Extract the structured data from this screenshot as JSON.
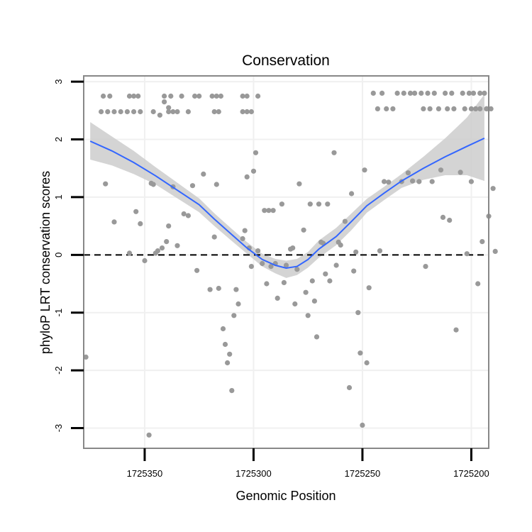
{
  "chart_data": {
    "type": "scatter",
    "title": "Conservation",
    "xlabel": "Genomic Position",
    "ylabel": "phyloP LRT conservation scores",
    "x_reversed": true,
    "xlim": [
      1725378,
      1725192
    ],
    "ylim": [
      -3.35,
      3.1
    ],
    "x_ticks": [
      1725350,
      1725300,
      1725250,
      1725200
    ],
    "x_tick_labels": [
      "1725350",
      "1725300",
      "1725250",
      "1725200"
    ],
    "y_ticks": [
      -3,
      -2,
      -1,
      0,
      1,
      2,
      3
    ],
    "y_tick_labels": [
      "-3",
      "-2",
      "-1",
      "0",
      "1",
      "2",
      "3"
    ],
    "grid": true,
    "reference_line": {
      "y": 0,
      "style": "dashed",
      "color": "#000000"
    },
    "colors": {
      "points": "#999999",
      "smooth": "#3366ff",
      "band": "#cccccc",
      "frame": "#888888",
      "grid": "#f0f0f0"
    },
    "series": [
      {
        "type": "points",
        "points": [
          [
            1725369,
            2.75
          ],
          [
            1725366,
            2.75
          ],
          [
            1725357,
            2.75
          ],
          [
            1725355,
            2.75
          ],
          [
            1725353,
            2.75
          ],
          [
            1725341,
            2.75
          ],
          [
            1725338,
            2.75
          ],
          [
            1725333,
            2.75
          ],
          [
            1725327,
            2.75
          ],
          [
            1725325,
            2.75
          ],
          [
            1725319,
            2.75
          ],
          [
            1725317,
            2.75
          ],
          [
            1725315,
            2.75
          ],
          [
            1725305,
            2.75
          ],
          [
            1725303,
            2.75
          ],
          [
            1725298,
            2.75
          ],
          [
            1725370,
            2.48
          ],
          [
            1725367,
            2.48
          ],
          [
            1725364,
            2.48
          ],
          [
            1725361,
            2.48
          ],
          [
            1725358,
            2.48
          ],
          [
            1725355,
            2.48
          ],
          [
            1725352,
            2.48
          ],
          [
            1725346,
            2.48
          ],
          [
            1725339,
            2.48
          ],
          [
            1725337,
            2.48
          ],
          [
            1725335,
            2.48
          ],
          [
            1725330,
            2.48
          ],
          [
            1725318,
            2.48
          ],
          [
            1725316,
            2.48
          ],
          [
            1725305,
            2.48
          ],
          [
            1725303,
            2.48
          ],
          [
            1725301,
            2.48
          ],
          [
            1725343,
            2.42
          ],
          [
            1725341,
            2.65
          ],
          [
            1725339,
            2.55
          ],
          [
            1725368,
            1.23
          ],
          [
            1725364,
            0.57
          ],
          [
            1725357,
            0.03
          ],
          [
            1725354,
            0.75
          ],
          [
            1725352,
            0.54
          ],
          [
            1725350,
            -0.1
          ],
          [
            1725346,
            1.22
          ],
          [
            1725344,
            0.07
          ],
          [
            1725342,
            0.12
          ],
          [
            1725340,
            0.23
          ],
          [
            1725339,
            0.5
          ],
          [
            1725337,
            1.18
          ],
          [
            1725335,
            0.16
          ],
          [
            1725332,
            0.71
          ],
          [
            1725330,
            0.68
          ],
          [
            1725328,
            1.2
          ],
          [
            1725326,
            -0.27
          ],
          [
            1725323,
            1.4
          ],
          [
            1725320,
            -0.6
          ],
          [
            1725318,
            0.31
          ],
          [
            1725317,
            1.22
          ],
          [
            1725316,
            -0.58
          ],
          [
            1725314,
            -1.28
          ],
          [
            1725313,
            -1.55
          ],
          [
            1725312,
            -1.87
          ],
          [
            1725311,
            -1.72
          ],
          [
            1725310,
            -2.35
          ],
          [
            1725309,
            -1.05
          ],
          [
            1725308,
            -0.6
          ],
          [
            1725307,
            -0.85
          ],
          [
            1725305,
            0.28
          ],
          [
            1725304,
            0.42
          ],
          [
            1725303,
            1.35
          ],
          [
            1725302,
            0.12
          ],
          [
            1725301,
            -0.2
          ],
          [
            1725300,
            1.45
          ],
          [
            1725299,
            1.77
          ],
          [
            1725298,
            0.07
          ],
          [
            1725296,
            -0.15
          ],
          [
            1725295,
            0.77
          ],
          [
            1725294,
            -0.5
          ],
          [
            1725293,
            0.77
          ],
          [
            1725292,
            -0.2
          ],
          [
            1725291,
            0.77
          ],
          [
            1725290,
            -0.15
          ],
          [
            1725289,
            -0.75
          ],
          [
            1725287,
            0.88
          ],
          [
            1725286,
            -0.48
          ],
          [
            1725285,
            -0.18
          ],
          [
            1725283,
            0.1
          ],
          [
            1725282,
            0.12
          ],
          [
            1725281,
            -0.85
          ],
          [
            1725280,
            -0.25
          ],
          [
            1725279,
            1.23
          ],
          [
            1725277,
            0.43
          ],
          [
            1725276,
            -0.65
          ],
          [
            1725275,
            -1.05
          ],
          [
            1725274,
            0.88
          ],
          [
            1725273,
            -0.45
          ],
          [
            1725272,
            -0.8
          ],
          [
            1725271,
            -1.42
          ],
          [
            1725270,
            0.88
          ],
          [
            1725269,
            0.22
          ],
          [
            1725268,
            0.2
          ],
          [
            1725267,
            -0.33
          ],
          [
            1725266,
            0.88
          ],
          [
            1725265,
            -0.45
          ],
          [
            1725263,
            1.77
          ],
          [
            1725262,
            -0.18
          ],
          [
            1725261,
            0.22
          ],
          [
            1725260,
            0.17
          ],
          [
            1725258,
            0.58
          ],
          [
            1725256,
            -2.3
          ],
          [
            1725255,
            1.06
          ],
          [
            1725254,
            -0.28
          ],
          [
            1725253,
            0.05
          ],
          [
            1725252,
            -1.0
          ],
          [
            1725251,
            -1.7
          ],
          [
            1725250,
            -2.95
          ],
          [
            1725249,
            1.47
          ],
          [
            1725248,
            -1.87
          ],
          [
            1725247,
            -0.57
          ],
          [
            1725245,
            2.8
          ],
          [
            1725243,
            2.53
          ],
          [
            1725241,
            2.8
          ],
          [
            1725239,
            2.53
          ],
          [
            1725242,
            0.07
          ],
          [
            1725240,
            1.27
          ],
          [
            1725238,
            1.26
          ],
          [
            1725236,
            2.53
          ],
          [
            1725234,
            2.8
          ],
          [
            1725232,
            1.27
          ],
          [
            1725231,
            2.8
          ],
          [
            1725229,
            1.42
          ],
          [
            1725228,
            2.8
          ],
          [
            1725227,
            1.28
          ],
          [
            1725226,
            2.8
          ],
          [
            1725224,
            1.27
          ],
          [
            1725223,
            2.8
          ],
          [
            1725222,
            2.53
          ],
          [
            1725221,
            -0.2
          ],
          [
            1725220,
            2.8
          ],
          [
            1725219,
            2.53
          ],
          [
            1725218,
            1.27
          ],
          [
            1725217,
            2.8
          ],
          [
            1725215,
            2.53
          ],
          [
            1725214,
            1.47
          ],
          [
            1725213,
            0.65
          ],
          [
            1725212,
            2.8
          ],
          [
            1725211,
            2.53
          ],
          [
            1725210,
            0.6
          ],
          [
            1725209,
            2.8
          ],
          [
            1725208,
            2.53
          ],
          [
            1725207,
            -1.3
          ],
          [
            1725205,
            1.43
          ],
          [
            1725204,
            2.8
          ],
          [
            1725203,
            2.53
          ],
          [
            1725202,
            0.02
          ],
          [
            1725201,
            2.8
          ],
          [
            1725200,
            1.27
          ],
          [
            1725199,
            2.8
          ],
          [
            1725198,
            2.53
          ],
          [
            1725197,
            -0.5
          ],
          [
            1725196,
            2.8
          ],
          [
            1725195,
            0.23
          ],
          [
            1725194,
            2.8
          ],
          [
            1725193,
            2.53
          ],
          [
            1725192,
            0.67
          ],
          [
            1725347,
            1.24
          ],
          [
            1725345,
            0.03
          ],
          [
            1725190,
            1.15
          ],
          [
            1725189,
            0.06
          ],
          [
            1725200,
            2.53
          ],
          [
            1725198,
            2.53
          ],
          [
            1725196,
            2.53
          ],
          [
            1725193,
            2.53
          ],
          [
            1725191,
            2.53
          ],
          [
            1725377,
            -1.77
          ],
          [
            1725348,
            -3.12
          ]
        ]
      },
      {
        "type": "smooth_line",
        "points": [
          [
            1725375,
            1.97
          ],
          [
            1725365,
            1.8
          ],
          [
            1725355,
            1.6
          ],
          [
            1725345,
            1.37
          ],
          [
            1725335,
            1.12
          ],
          [
            1725325,
            0.87
          ],
          [
            1725318,
            0.62
          ],
          [
            1725310,
            0.35
          ],
          [
            1725303,
            0.12
          ],
          [
            1725296,
            -0.08
          ],
          [
            1725290,
            -0.18
          ],
          [
            1725285,
            -0.23
          ],
          [
            1725280,
            -0.2
          ],
          [
            1725275,
            -0.08
          ],
          [
            1725270,
            0.1
          ],
          [
            1725262,
            0.32
          ],
          [
            1725255,
            0.58
          ],
          [
            1725248,
            0.85
          ],
          [
            1725240,
            1.07
          ],
          [
            1725232,
            1.28
          ],
          [
            1725222,
            1.5
          ],
          [
            1725212,
            1.7
          ],
          [
            1725202,
            1.88
          ],
          [
            1725194,
            2.02
          ]
        ],
        "band_upper": [
          [
            1725375,
            2.3
          ],
          [
            1725365,
            2.05
          ],
          [
            1725355,
            1.8
          ],
          [
            1725345,
            1.52
          ],
          [
            1725335,
            1.25
          ],
          [
            1725325,
            0.98
          ],
          [
            1725318,
            0.72
          ],
          [
            1725310,
            0.45
          ],
          [
            1725303,
            0.22
          ],
          [
            1725296,
            0.02
          ],
          [
            1725290,
            -0.07
          ],
          [
            1725285,
            -0.1
          ],
          [
            1725280,
            -0.07
          ],
          [
            1725275,
            0.05
          ],
          [
            1725270,
            0.25
          ],
          [
            1725262,
            0.47
          ],
          [
            1725255,
            0.72
          ],
          [
            1725248,
            0.97
          ],
          [
            1725240,
            1.18
          ],
          [
            1725232,
            1.4
          ],
          [
            1725222,
            1.7
          ],
          [
            1725212,
            2.02
          ],
          [
            1725202,
            2.38
          ],
          [
            1725194,
            2.78
          ]
        ],
        "band_lower": [
          [
            1725375,
            1.65
          ],
          [
            1725365,
            1.55
          ],
          [
            1725355,
            1.4
          ],
          [
            1725345,
            1.22
          ],
          [
            1725335,
            0.98
          ],
          [
            1725325,
            0.74
          ],
          [
            1725318,
            0.5
          ],
          [
            1725310,
            0.24
          ],
          [
            1725303,
            0.02
          ],
          [
            1725296,
            -0.2
          ],
          [
            1725290,
            -0.32
          ],
          [
            1725285,
            -0.4
          ],
          [
            1725280,
            -0.35
          ],
          [
            1725275,
            -0.22
          ],
          [
            1725270,
            -0.05
          ],
          [
            1725262,
            0.17
          ],
          [
            1725255,
            0.43
          ],
          [
            1725248,
            0.73
          ],
          [
            1725240,
            0.95
          ],
          [
            1725232,
            1.16
          ],
          [
            1725222,
            1.3
          ],
          [
            1725212,
            1.38
          ],
          [
            1725202,
            1.38
          ],
          [
            1725194,
            1.28
          ]
        ]
      }
    ]
  }
}
